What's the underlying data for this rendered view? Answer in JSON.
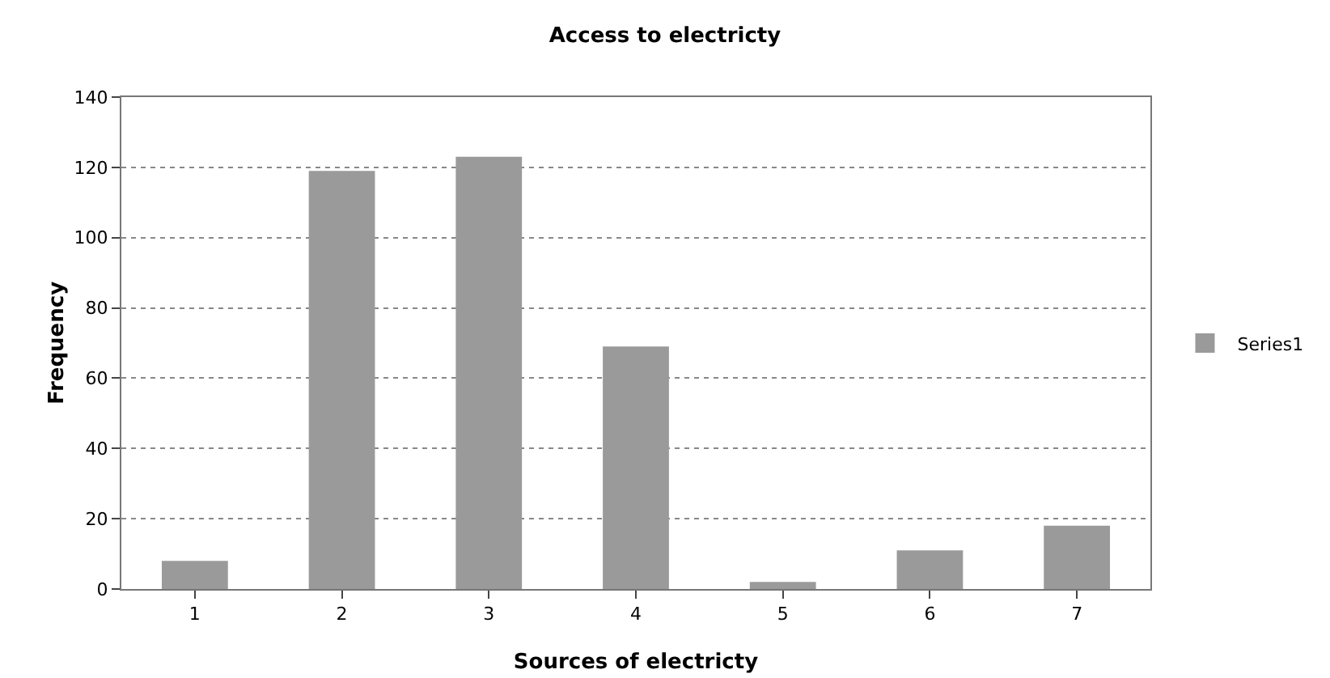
{
  "chart_data": {
    "type": "bar",
    "title": "Access to electricty",
    "xlabel": "Sources of electricty",
    "ylabel": "Frequency",
    "categories": [
      "1",
      "2",
      "3",
      "4",
      "5",
      "6",
      "7"
    ],
    "series": [
      {
        "name": "Series1",
        "color": "#9a9a9a",
        "values": [
          8,
          119,
          123,
          69,
          2,
          11,
          18
        ]
      }
    ],
    "ylim": [
      0,
      140
    ],
    "yticks": [
      0,
      20,
      40,
      60,
      80,
      100,
      120,
      140
    ],
    "grid": "y",
    "legend": "right"
  }
}
